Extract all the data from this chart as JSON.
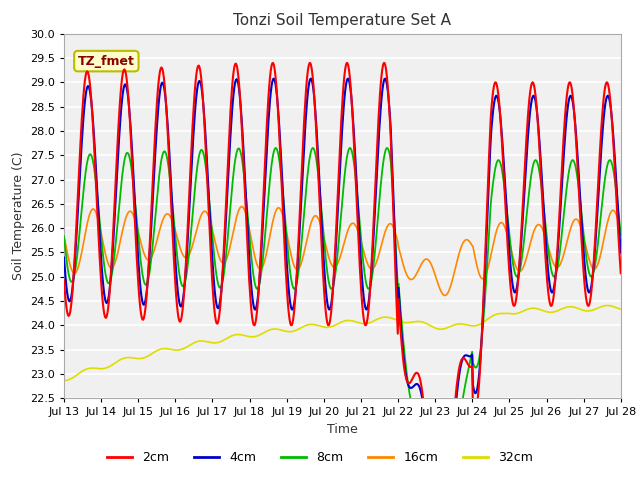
{
  "title": "Tonzi Soil Temperature Set A",
  "xlabel": "Time",
  "ylabel": "Soil Temperature (C)",
  "ylim": [
    22.5,
    30.0
  ],
  "colors": {
    "2cm": "#FF0000",
    "4cm": "#0000CC",
    "8cm": "#00BB00",
    "16cm": "#FF8800",
    "32cm": "#DDDD00"
  },
  "legend_label": "TZ_fmet",
  "tick_dates": [
    "Jul 13",
    "Jul 14",
    "Jul 15",
    "Jul 16",
    "Jul 17",
    "Jul 18",
    "Jul 19",
    "Jul 20",
    "Jul 21",
    "Jul 22",
    "Jul 23",
    "Jul 24",
    "Jul 25",
    "Jul 26",
    "Jul 27",
    "Jul 28"
  ]
}
